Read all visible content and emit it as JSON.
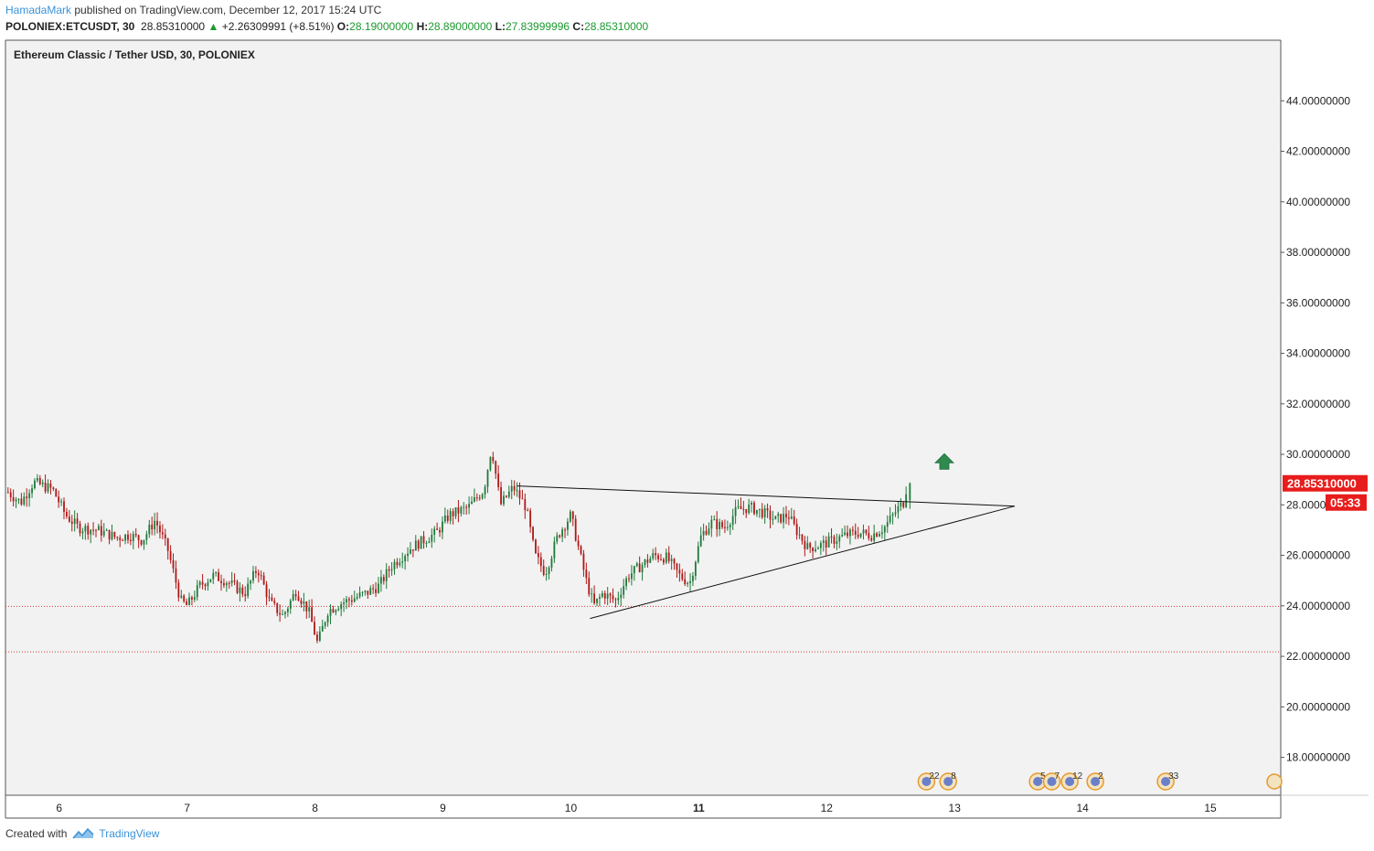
{
  "header": {
    "author": "HamadaMark",
    "published_text": "published on TradingView.com, December 12, 2017 15:24 UTC",
    "symbol": "POLONIEX:ETCUSDT, 30",
    "last": "28.85310000",
    "change": "+2.26309991 (+8.51%)",
    "open_label": "O:",
    "open": "28.19000000",
    "high_label": "H:",
    "high": "28.89000000",
    "low_label": "L:",
    "low": "27.83999996",
    "close_label": "C:",
    "close": "28.85310000"
  },
  "chart_data": {
    "type": "candlestick",
    "title": "Ethereum Classic / Tether USD, 30, POLONIEX",
    "x_ticks": [
      "6",
      "7",
      "8",
      "9",
      "10",
      "11",
      "12",
      "13",
      "14",
      "15"
    ],
    "bold_x_tick": "11",
    "y_ticks": [
      "44.00000000",
      "42.00000000",
      "40.00000000",
      "38.00000000",
      "36.00000000",
      "34.00000000",
      "32.00000000",
      "30.00000000",
      "28.00000000",
      "26.00000000",
      "24.00000000",
      "22.00000000",
      "20.00000000",
      "18.00000000"
    ],
    "ylim": [
      16.5,
      46.4
    ],
    "xlim": [
      5.58,
      15.55
    ],
    "grid": false,
    "price_path": [
      [
        5.6,
        28.5
      ],
      [
        5.7,
        28.1
      ],
      [
        5.8,
        28.9
      ],
      [
        5.95,
        28.6
      ],
      [
        6.05,
        27.6
      ],
      [
        6.15,
        27.1
      ],
      [
        6.3,
        27.0
      ],
      [
        6.45,
        26.7
      ],
      [
        6.55,
        26.8
      ],
      [
        6.65,
        26.6
      ],
      [
        6.75,
        27.4
      ],
      [
        6.85,
        26.2
      ],
      [
        6.95,
        24.2
      ],
      [
        7.0,
        24.0
      ],
      [
        7.1,
        24.8
      ],
      [
        7.2,
        25.2
      ],
      [
        7.3,
        25.0
      ],
      [
        7.45,
        24.5
      ],
      [
        7.55,
        25.5
      ],
      [
        7.65,
        24.1
      ],
      [
        7.75,
        23.6
      ],
      [
        7.85,
        24.6
      ],
      [
        7.95,
        23.8
      ],
      [
        8.02,
        22.5
      ],
      [
        8.1,
        23.8
      ],
      [
        8.2,
        24.1
      ],
      [
        8.3,
        24.3
      ],
      [
        8.4,
        24.5
      ],
      [
        8.5,
        24.8
      ],
      [
        8.6,
        25.6
      ],
      [
        8.75,
        26.3
      ],
      [
        8.85,
        26.6
      ],
      [
        8.95,
        26.9
      ],
      [
        9.05,
        27.6
      ],
      [
        9.2,
        27.9
      ],
      [
        9.32,
        28.6
      ],
      [
        9.38,
        30.3
      ],
      [
        9.45,
        28.0
      ],
      [
        9.55,
        28.7
      ],
      [
        9.65,
        27.9
      ],
      [
        9.72,
        26.0
      ],
      [
        9.8,
        25.3
      ],
      [
        9.9,
        26.8
      ],
      [
        10.0,
        27.6
      ],
      [
        10.05,
        26.5
      ],
      [
        10.12,
        25.0
      ],
      [
        10.18,
        24.0
      ],
      [
        10.25,
        24.5
      ],
      [
        10.35,
        24.2
      ],
      [
        10.45,
        25.2
      ],
      [
        10.55,
        25.6
      ],
      [
        10.65,
        26.0
      ],
      [
        10.75,
        25.9
      ],
      [
        10.85,
        25.2
      ],
      [
        10.93,
        24.9
      ],
      [
        11.02,
        26.8
      ],
      [
        11.1,
        27.3
      ],
      [
        11.2,
        27.1
      ],
      [
        11.3,
        27.8
      ],
      [
        11.4,
        27.9
      ],
      [
        11.5,
        27.7
      ],
      [
        11.6,
        27.4
      ],
      [
        11.7,
        27.6
      ],
      [
        11.75,
        27.1
      ],
      [
        11.85,
        26.3
      ],
      [
        11.95,
        26.4
      ],
      [
        12.05,
        26.6
      ],
      [
        12.15,
        26.8
      ],
      [
        12.25,
        26.9
      ],
      [
        12.35,
        26.8
      ],
      [
        12.45,
        27.1
      ],
      [
        12.55,
        27.8
      ],
      [
        12.6,
        28.1
      ],
      [
        12.63,
        28.85
      ]
    ],
    "lines": [
      {
        "name": "resistance",
        "points": [
          [
            9.58,
            28.75
          ],
          [
            13.47,
            27.95
          ]
        ]
      },
      {
        "name": "support",
        "points": [
          [
            10.15,
            23.5
          ],
          [
            13.47,
            27.95
          ]
        ]
      },
      {
        "name": "support-dotted-1",
        "level": 23.98
      },
      {
        "name": "support-dotted-2",
        "level": 22.18
      }
    ],
    "arrow": {
      "x": 12.92,
      "y": 29.7
    },
    "last_price_label": "28.85310000",
    "countdown_label": "05:33",
    "event_labels": [
      {
        "x": 12.78,
        "label": "22"
      },
      {
        "x": 12.95,
        "label": "8"
      },
      {
        "x": 13.65,
        "label": "5"
      },
      {
        "x": 13.76,
        "label": "7"
      },
      {
        "x": 13.9,
        "label": "12"
      },
      {
        "x": 14.1,
        "label": "2"
      },
      {
        "x": 14.65,
        "label": "33"
      }
    ],
    "colors": {
      "up": "#1f7a3a",
      "down": "#b01818",
      "background": "#f2f2f2",
      "level": "#d23b3b",
      "label_bg": "#e81c1c",
      "arrow": "#2e8a4d"
    }
  },
  "footer": {
    "created_with": "Created with",
    "brand": "TradingView"
  }
}
